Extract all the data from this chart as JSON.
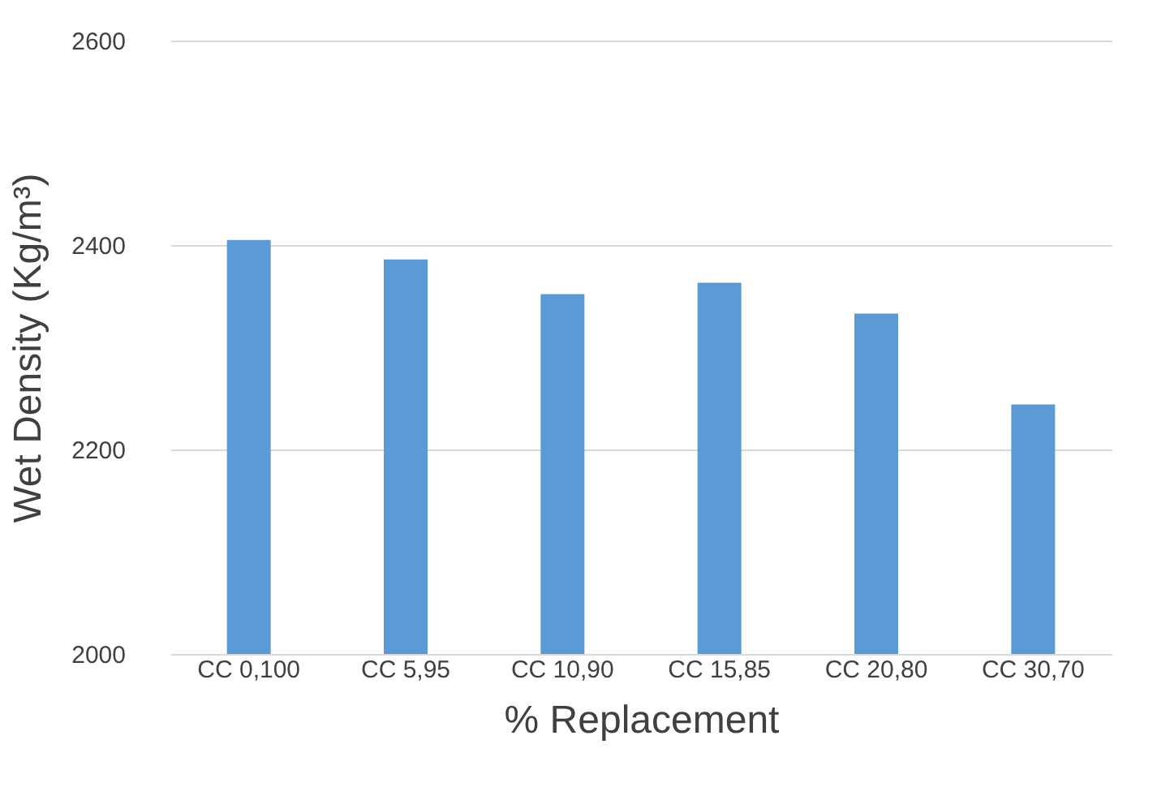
{
  "chart_data": {
    "type": "bar",
    "xlabel": "% Replacement",
    "ylabel": "Wet Density (Kg/m³)",
    "categories": [
      "CC 0,100",
      "CC 5,95",
      "CC 10,90",
      "CC 15,85",
      "CC 20,80",
      "CC 30,70"
    ],
    "values": [
      2405,
      2386,
      2352,
      2363,
      2333,
      2244
    ],
    "color": "#5b9bd5",
    "ylim": [
      2000,
      2600
    ],
    "yticks": [
      2000,
      2200,
      2400,
      2600
    ],
    "grid": "y"
  }
}
